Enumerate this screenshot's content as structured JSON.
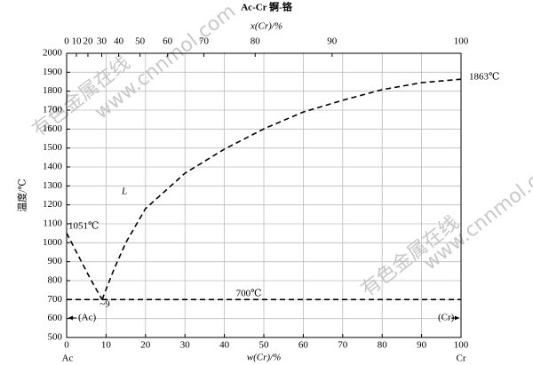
{
  "chart_data": {
    "type": "line",
    "title": "Ac-Cr  锕-铬",
    "xlabel": "w(Cr)/%",
    "ylabel": "温度/℃",
    "x2label": "x(Cr)/%",
    "left_component": "Ac",
    "right_component": "Cr",
    "xlim": [
      0,
      100
    ],
    "xticks": [
      0,
      10,
      20,
      30,
      40,
      50,
      60,
      70,
      80,
      90,
      100
    ],
    "ylim": [
      500,
      2000
    ],
    "yticks": [
      500,
      600,
      700,
      800,
      900,
      1000,
      1100,
      1200,
      1300,
      1400,
      1500,
      1600,
      1700,
      1800,
      1900,
      2000
    ],
    "x2ticks": [
      {
        "value": 0,
        "label": "0"
      },
      {
        "value": 2.48,
        "label": "10"
      },
      {
        "value": 5.4,
        "label": "20"
      },
      {
        "value": 8.9,
        "label": "30"
      },
      {
        "value": 13.2,
        "label": "40"
      },
      {
        "value": 18.6,
        "label": "50"
      },
      {
        "value": 25.6,
        "label": "60"
      },
      {
        "value": 34.8,
        "label": "70"
      },
      {
        "value": 47.8,
        "label": "80"
      },
      {
        "value": 67.3,
        "label": "90"
      },
      {
        "value": 100,
        "label": "100"
      }
    ],
    "grid": true,
    "series": [
      {
        "color": "#000000",
        "x": [
          0,
          3,
          6,
          9
        ],
        "values": [
          1051,
          930,
          810,
          700
        ]
      },
      {
        "color": "#000000",
        "x": [
          9,
          12,
          15,
          20,
          30,
          40,
          50,
          60,
          70,
          80,
          90,
          100
        ],
        "values": [
          700,
          860,
          1000,
          1180,
          1367,
          1494,
          1601,
          1690,
          1752,
          1808,
          1845,
          1863
        ]
      },
      {
        "color": "#000000",
        "x": [
          0,
          100
        ],
        "values": [
          700,
          700
        ]
      }
    ],
    "annotations": [
      "1051℃",
      "1863℃",
      "700℃",
      "~9",
      "L",
      "(Ac)",
      "(Cr)"
    ],
    "watermarks": [
      "有色金属在线",
      "www.cnnmol.com"
    ]
  }
}
